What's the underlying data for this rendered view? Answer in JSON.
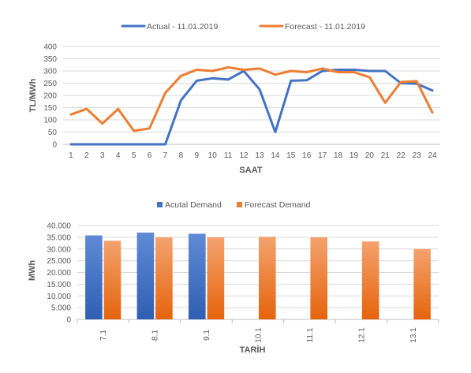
{
  "chart_data": [
    {
      "type": "line",
      "title": "",
      "xlabel": "SAAT",
      "ylabel": "TL/MWh",
      "ylim": [
        0,
        400
      ],
      "yticks": [
        "0",
        "50",
        "100",
        "150",
        "200",
        "250",
        "300",
        "350",
        "400"
      ],
      "categories": [
        "1",
        "2",
        "3",
        "4",
        "5",
        "6",
        "7",
        "8",
        "9",
        "10",
        "11",
        "12",
        "13",
        "14",
        "15",
        "16",
        "17",
        "18",
        "19",
        "20",
        "21",
        "22",
        "23",
        "24"
      ],
      "legend_position": "top",
      "grid": true,
      "series": [
        {
          "name": "Actual - 11.01.2019",
          "color": "#4472c4",
          "values": [
            0,
            0,
            0,
            0,
            0,
            0,
            0,
            180,
            260,
            270,
            265,
            300,
            225,
            50,
            260,
            262,
            300,
            305,
            305,
            300,
            300,
            250,
            248,
            220
          ]
        },
        {
          "name": "Forecast - 11.01.2019",
          "color": "#ed7d31",
          "values": [
            122,
            145,
            85,
            145,
            55,
            65,
            210,
            280,
            305,
            300,
            315,
            305,
            310,
            285,
            300,
            295,
            310,
            295,
            295,
            275,
            170,
            255,
            258,
            130
          ]
        }
      ]
    },
    {
      "type": "bar",
      "title": "",
      "xlabel": "TARİH",
      "ylabel": "MWh",
      "ylim": [
        0,
        40000
      ],
      "yticks": [
        "0",
        "5.000",
        "10.000",
        "15.000",
        "20.000",
        "25.000",
        "30.000",
        "35.000",
        "40.000"
      ],
      "categories": [
        "7.1",
        "8.1",
        "9.1",
        "10.1",
        "11.1",
        "12.1",
        "13.1"
      ],
      "legend_position": "top",
      "grid": true,
      "series": [
        {
          "name": "Acutal Demand",
          "color": "#4472c4",
          "values": [
            35800,
            37000,
            36500,
            null,
            null,
            null,
            null
          ]
        },
        {
          "name": "Forecast Demand",
          "color": "#ed7d31",
          "values": [
            33500,
            35000,
            35000,
            35200,
            35000,
            33200,
            30000
          ]
        }
      ]
    }
  ]
}
